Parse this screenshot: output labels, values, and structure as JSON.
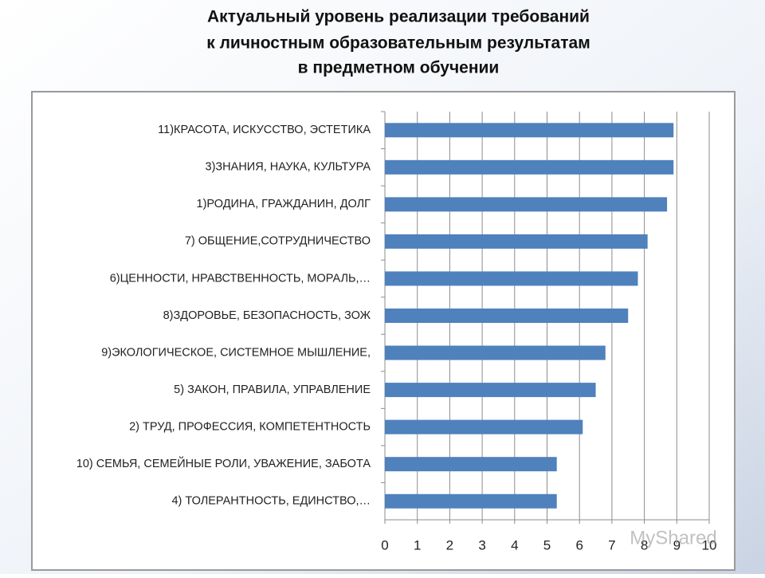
{
  "chart_data": {
    "type": "bar",
    "orientation": "horizontal",
    "title": [
      "Актуальный уровень  реализации требований",
      "к личностным образовательным результатам",
      "в предметном обучении"
    ],
    "categories": [
      "11)КРАСОТА, ИСКУССТВО, ЭСТЕТИКА",
      "3)ЗНАНИЯ, НАУКА, КУЛЬТУРА",
      "1)РОДИНА, ГРАЖДАНИН, ДОЛГ",
      "7) ОБЩЕНИЕ,СОТРУДНИЧЕСТВО",
      "6)ЦЕННОСТИ, НРАВСТВЕННОСТЬ, МОРАЛЬ,…",
      "8)ЗДОРОВЬЕ, БЕЗОПАСНОСТЬ, ЗОЖ",
      "9)ЭКОЛОГИЧЕСКОЕ, СИСТЕМНОЕ МЫШЛЕНИЕ,",
      "5) ЗАКОН, ПРАВИЛА, УПРАВЛЕНИЕ",
      "2) ТРУД, ПРОФЕССИЯ, КОМПЕТЕНТНОСТЬ",
      "10) СЕМЬЯ, СЕМЕЙНЫЕ РОЛИ, УВАЖЕНИЕ, ЗАБОТА",
      "4) ТОЛЕРАНТНОСТЬ, ЕДИНСТВО,…"
    ],
    "values": [
      8.9,
      8.9,
      8.7,
      8.1,
      7.8,
      7.5,
      6.8,
      6.5,
      6.1,
      5.3,
      5.3
    ],
    "color": "#4f81bd",
    "xlim": [
      0,
      10
    ],
    "xticks": [
      0,
      1,
      2,
      3,
      4,
      5,
      6,
      7,
      8,
      9,
      10
    ],
    "grid": true
  },
  "watermark": "MyShared"
}
